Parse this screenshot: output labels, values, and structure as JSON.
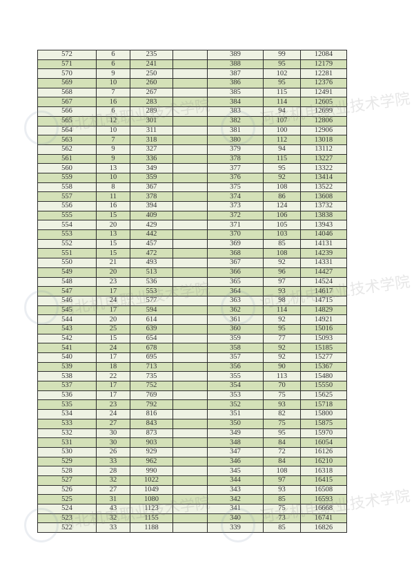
{
  "watermark": "河北机电职业技术学院",
  "colors": {
    "row_light": "#eef2e3",
    "row_green": "#d4e1b8",
    "border": "#2a2a2a"
  },
  "rows": [
    [
      [
        "572",
        "6",
        "235"
      ],
      [
        "389",
        "99",
        "12084"
      ]
    ],
    [
      [
        "571",
        "6",
        "241"
      ],
      [
        "388",
        "95",
        "12179"
      ]
    ],
    [
      [
        "570",
        "9",
        "250"
      ],
      [
        "387",
        "102",
        "12281"
      ]
    ],
    [
      [
        "569",
        "10",
        "260"
      ],
      [
        "386",
        "95",
        "12376"
      ]
    ],
    [
      [
        "568",
        "7",
        "267"
      ],
      [
        "385",
        "115",
        "12491"
      ]
    ],
    [
      [
        "567",
        "16",
        "283"
      ],
      [
        "384",
        "114",
        "12605"
      ]
    ],
    [
      [
        "566",
        "6",
        "289"
      ],
      [
        "383",
        "94",
        "12699"
      ]
    ],
    [
      [
        "565",
        "12",
        "301"
      ],
      [
        "382",
        "107",
        "12806"
      ]
    ],
    [
      [
        "564",
        "10",
        "311"
      ],
      [
        "381",
        "100",
        "12906"
      ]
    ],
    [
      [
        "563",
        "7",
        "318"
      ],
      [
        "380",
        "112",
        "13018"
      ]
    ],
    [
      [
        "562",
        "9",
        "327"
      ],
      [
        "379",
        "94",
        "13112"
      ]
    ],
    [
      [
        "561",
        "9",
        "336"
      ],
      [
        "378",
        "115",
        "13227"
      ]
    ],
    [
      [
        "560",
        "13",
        "349"
      ],
      [
        "377",
        "95",
        "13322"
      ]
    ],
    [
      [
        "559",
        "10",
        "359"
      ],
      [
        "376",
        "92",
        "13414"
      ]
    ],
    [
      [
        "558",
        "8",
        "367"
      ],
      [
        "375",
        "108",
        "13522"
      ]
    ],
    [
      [
        "557",
        "11",
        "378"
      ],
      [
        "374",
        "86",
        "13608"
      ]
    ],
    [
      [
        "556",
        "16",
        "394"
      ],
      [
        "373",
        "124",
        "13732"
      ]
    ],
    [
      [
        "555",
        "15",
        "409"
      ],
      [
        "372",
        "106",
        "13838"
      ]
    ],
    [
      [
        "554",
        "20",
        "429"
      ],
      [
        "371",
        "105",
        "13943"
      ]
    ],
    [
      [
        "553",
        "13",
        "442"
      ],
      [
        "370",
        "103",
        "14046"
      ]
    ],
    [
      [
        "552",
        "15",
        "457"
      ],
      [
        "369",
        "85",
        "14131"
      ]
    ],
    [
      [
        "551",
        "15",
        "472"
      ],
      [
        "368",
        "108",
        "14239"
      ]
    ],
    [
      [
        "550",
        "21",
        "493"
      ],
      [
        "367",
        "92",
        "14331"
      ]
    ],
    [
      [
        "549",
        "20",
        "513"
      ],
      [
        "366",
        "96",
        "14427"
      ]
    ],
    [
      [
        "548",
        "23",
        "536"
      ],
      [
        "365",
        "97",
        "14524"
      ]
    ],
    [
      [
        "547",
        "17",
        "553"
      ],
      [
        "364",
        "93",
        "14617"
      ]
    ],
    [
      [
        "546",
        "24",
        "577"
      ],
      [
        "363",
        "98",
        "14715"
      ]
    ],
    [
      [
        "545",
        "17",
        "594"
      ],
      [
        "362",
        "114",
        "14829"
      ]
    ],
    [
      [
        "544",
        "20",
        "614"
      ],
      [
        "361",
        "92",
        "14921"
      ]
    ],
    [
      [
        "543",
        "25",
        "639"
      ],
      [
        "360",
        "95",
        "15016"
      ]
    ],
    [
      [
        "542",
        "15",
        "654"
      ],
      [
        "359",
        "77",
        "15093"
      ]
    ],
    [
      [
        "541",
        "24",
        "678"
      ],
      [
        "358",
        "92",
        "15185"
      ]
    ],
    [
      [
        "540",
        "17",
        "695"
      ],
      [
        "357",
        "92",
        "15277"
      ]
    ],
    [
      [
        "539",
        "18",
        "713"
      ],
      [
        "356",
        "90",
        "15367"
      ]
    ],
    [
      [
        "538",
        "22",
        "735"
      ],
      [
        "355",
        "113",
        "15480"
      ]
    ],
    [
      [
        "537",
        "17",
        "752"
      ],
      [
        "354",
        "70",
        "15550"
      ]
    ],
    [
      [
        "536",
        "17",
        "769"
      ],
      [
        "353",
        "75",
        "15625"
      ]
    ],
    [
      [
        "535",
        "23",
        "792"
      ],
      [
        "352",
        "93",
        "15718"
      ]
    ],
    [
      [
        "534",
        "24",
        "816"
      ],
      [
        "351",
        "82",
        "15800"
      ]
    ],
    [
      [
        "533",
        "27",
        "843"
      ],
      [
        "350",
        "75",
        "15875"
      ]
    ],
    [
      [
        "532",
        "30",
        "873"
      ],
      [
        "349",
        "95",
        "15970"
      ]
    ],
    [
      [
        "531",
        "30",
        "903"
      ],
      [
        "348",
        "84",
        "16054"
      ]
    ],
    [
      [
        "530",
        "26",
        "929"
      ],
      [
        "347",
        "72",
        "16126"
      ]
    ],
    [
      [
        "529",
        "33",
        "962"
      ],
      [
        "346",
        "84",
        "16210"
      ]
    ],
    [
      [
        "528",
        "28",
        "990"
      ],
      [
        "345",
        "108",
        "16318"
      ]
    ],
    [
      [
        "527",
        "32",
        "1022"
      ],
      [
        "344",
        "97",
        "16415"
      ]
    ],
    [
      [
        "526",
        "27",
        "1049"
      ],
      [
        "343",
        "93",
        "16508"
      ]
    ],
    [
      [
        "525",
        "31",
        "1080"
      ],
      [
        "342",
        "85",
        "16593"
      ]
    ],
    [
      [
        "524",
        "43",
        "1123"
      ],
      [
        "341",
        "75",
        "16668"
      ]
    ],
    [
      [
        "523",
        "32",
        "1155"
      ],
      [
        "340",
        "73",
        "16741"
      ]
    ],
    [
      [
        "522",
        "33",
        "1188"
      ],
      [
        "339",
        "85",
        "16826"
      ]
    ]
  ]
}
